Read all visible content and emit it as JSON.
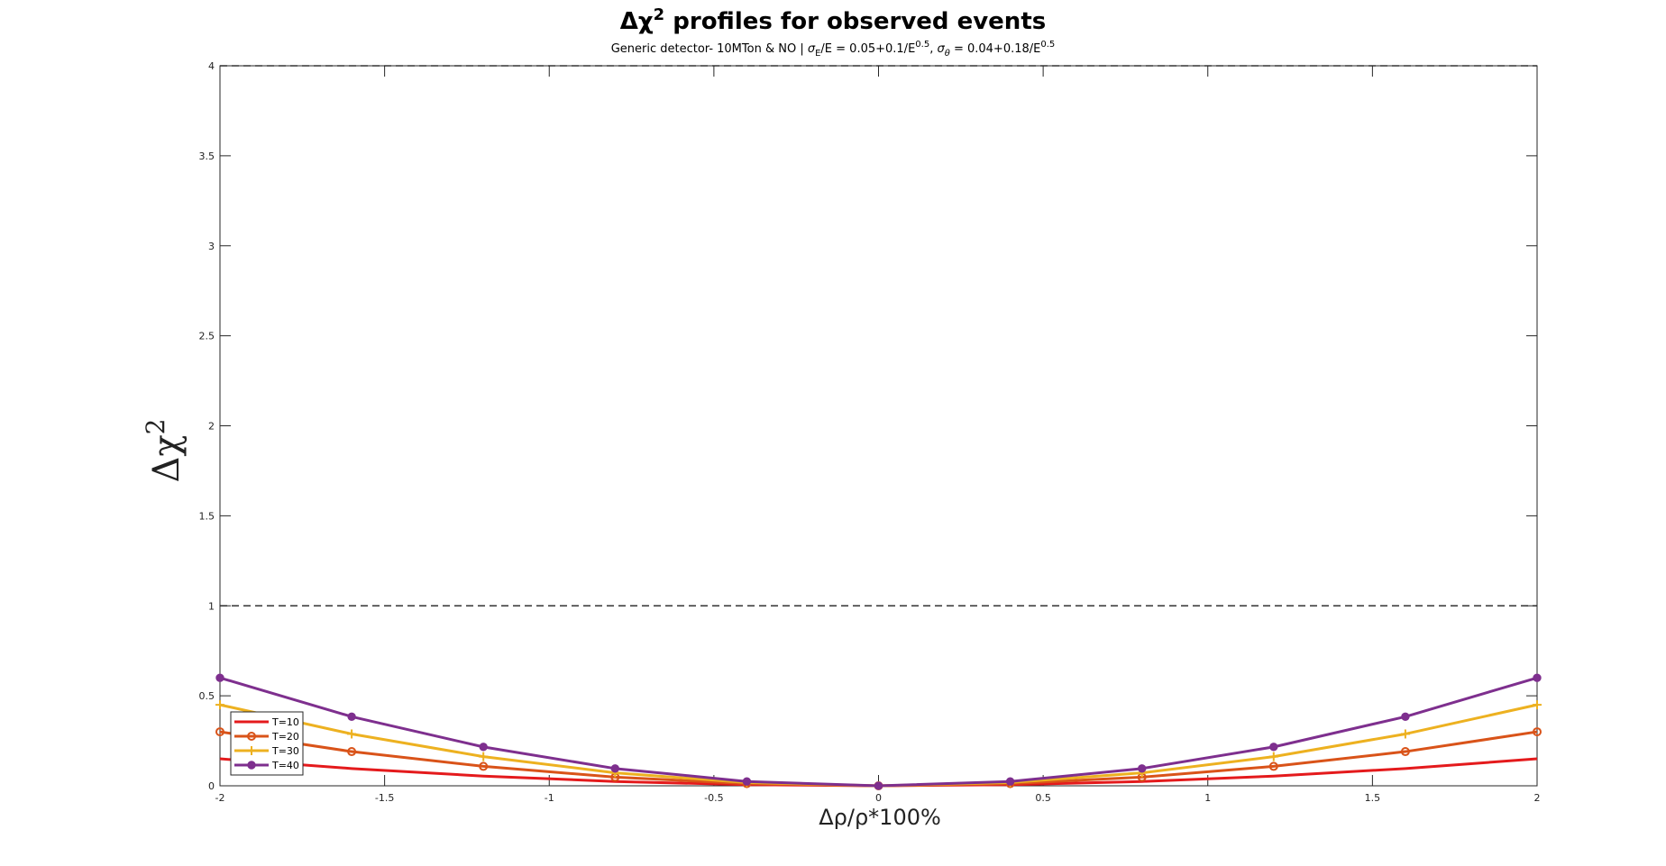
{
  "chart_data": {
    "type": "line",
    "title": "Δχ² profiles for observed events",
    "subtitle": "Generic detector- 10MTon & NO | σE/E = 0.05+0.1/E0.5, σθ = 0.04+0.18/E0.5",
    "title_parts": {
      "base": "Δχ",
      "sup": "2",
      "rest": " profiles for observed events"
    },
    "subtitle_parts": {
      "pre": "Generic detector- 10MTon & NO | ",
      "sigma": "σ",
      "subE": "E",
      "mid1": "/E = 0.05+0.1/E",
      "sup1": "0.5",
      "mid2": ", ",
      "subTheta": "θ",
      "mid3": " = 0.04+0.18/E",
      "sup2": "0.5"
    },
    "xlabel": "Δρ/ρ*100%",
    "ylabel_parts": {
      "base": "Δχ",
      "sup": "2"
    },
    "xlim": [
      -2,
      2
    ],
    "ylim": [
      0,
      4
    ],
    "xticks": [
      -2,
      -1.5,
      -1,
      -0.5,
      0,
      0.5,
      1,
      1.5,
      2
    ],
    "xtick_labels": [
      "-2",
      "-1.5",
      "-1",
      "-0.5",
      "0",
      "0.5",
      "1",
      "1.5",
      "2"
    ],
    "yticks": [
      0,
      0.5,
      1,
      1.5,
      2,
      2.5,
      3,
      3.5,
      4
    ],
    "ytick_labels": [
      "0",
      "0.5",
      "1",
      "1.5",
      "2",
      "2.5",
      "3",
      "3.5",
      "4"
    ],
    "reference_lines": [
      1,
      4
    ],
    "grid": false,
    "legend_position": "bottom-left",
    "x": [
      -2,
      -1.6,
      -1.2,
      -0.8,
      -0.4,
      0,
      0.4,
      0.8,
      1.2,
      1.6,
      2
    ],
    "series": [
      {
        "name": "T=10",
        "color": "#e41a1c",
        "marker": "none",
        "values": [
          0.15,
          0.096,
          0.054,
          0.024,
          0.006,
          0,
          0.006,
          0.024,
          0.054,
          0.096,
          0.15
        ]
      },
      {
        "name": "T=20",
        "color": "#d95319",
        "marker": "circle",
        "values": [
          0.3,
          0.19,
          0.108,
          0.048,
          0.012,
          0,
          0.012,
          0.048,
          0.108,
          0.19,
          0.3
        ]
      },
      {
        "name": "T=30",
        "color": "#edb120",
        "marker": "plus",
        "values": [
          0.45,
          0.288,
          0.162,
          0.072,
          0.018,
          0,
          0.018,
          0.072,
          0.162,
          0.288,
          0.45
        ]
      },
      {
        "name": "T=40",
        "color": "#7e2f8e",
        "marker": "filled-circle",
        "values": [
          0.6,
          0.384,
          0.216,
          0.096,
          0.024,
          0,
          0.024,
          0.096,
          0.216,
          0.384,
          0.6
        ]
      }
    ]
  }
}
